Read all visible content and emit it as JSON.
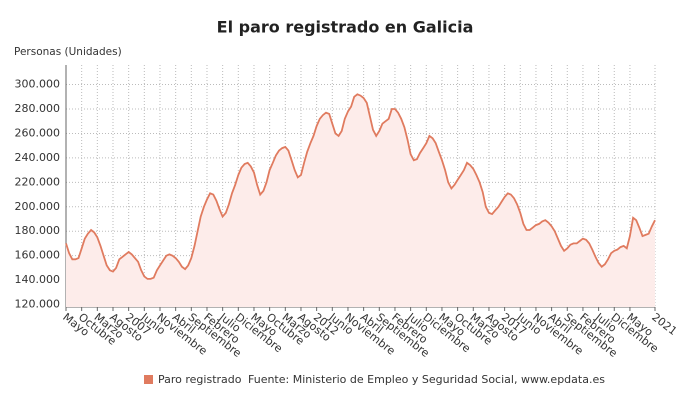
{
  "chart_data": {
    "type": "line",
    "title": "El paro registrado en Galicia",
    "y_axis_label": "Personas (Unidades)",
    "source": "Fuente: Ministerio de Empleo y Seguridad Social, www.epdata.es",
    "categories": [
      "Mayo",
      null,
      null,
      null,
      null,
      "Octubre",
      null,
      null,
      null,
      null,
      "Marzo",
      null,
      null,
      null,
      null,
      "Agosto",
      null,
      null,
      null,
      null,
      "2007",
      null,
      null,
      null,
      null,
      "Junio",
      null,
      null,
      null,
      null,
      "Noviembre",
      null,
      null,
      null,
      null,
      "Abril",
      null,
      null,
      null,
      null,
      "Septiembre",
      null,
      null,
      null,
      null,
      "Febrero",
      null,
      null,
      null,
      null,
      "Julio",
      null,
      null,
      null,
      null,
      "Diciembre",
      null,
      null,
      null,
      null,
      "Mayo",
      null,
      null,
      null,
      null,
      "Octubre",
      null,
      null,
      null,
      null,
      "Marzo",
      null,
      null,
      null,
      null,
      "Agosto",
      null,
      null,
      null,
      null,
      "2012",
      null,
      null,
      null,
      null,
      "Junio",
      null,
      null,
      null,
      null,
      "Noviembre",
      null,
      null,
      null,
      null,
      "Abril",
      null,
      null,
      null,
      null,
      "Septiembre",
      null,
      null,
      null,
      null,
      "Febrero",
      null,
      null,
      null,
      null,
      "Julio",
      null,
      null,
      null,
      null,
      "Diciembre",
      null,
      null,
      null,
      null,
      "Mayo",
      null,
      null,
      null,
      null,
      "Octubre",
      null,
      null,
      null,
      null,
      "Marzo",
      null,
      null,
      null,
      null,
      "Agosto",
      null,
      null,
      null,
      null,
      "2017",
      null,
      null,
      null,
      null,
      "Junio",
      null,
      null,
      null,
      null,
      "Noviembre",
      null,
      null,
      null,
      null,
      "Abril",
      null,
      null,
      null,
      null,
      "Septiembre",
      null,
      null,
      null,
      null,
      "Febrero",
      null,
      null,
      null,
      null,
      "Julio",
      null,
      null,
      null,
      null,
      "Diciembre",
      null,
      null,
      null,
      null,
      "Mayo",
      null,
      null,
      null,
      null,
      null,
      null,
      null,
      "2021"
    ],
    "series": [
      {
        "name": "Paro registrado",
        "color": "#e07b5f",
        "fill": "#fdecea",
        "values": [
          170000,
          162000,
          157000,
          157000,
          158000,
          166000,
          174000,
          178000,
          181000,
          179000,
          175000,
          168000,
          160000,
          152000,
          148000,
          147000,
          150000,
          157000,
          159000,
          161000,
          163000,
          161000,
          158000,
          155000,
          148000,
          143000,
          141000,
          141000,
          142000,
          148000,
          152000,
          156000,
          160000,
          161000,
          160000,
          158000,
          155000,
          151000,
          149000,
          152000,
          158000,
          168000,
          180000,
          192000,
          200000,
          206000,
          211000,
          210000,
          205000,
          198000,
          192000,
          195000,
          202000,
          211000,
          218000,
          226000,
          232000,
          235000,
          236000,
          233000,
          228000,
          218000,
          210000,
          213000,
          220000,
          230000,
          236000,
          242000,
          246000,
          248000,
          249000,
          246000,
          238000,
          230000,
          224000,
          226000,
          236000,
          245000,
          252000,
          258000,
          266000,
          272000,
          275000,
          277000,
          276000,
          268000,
          260000,
          258000,
          262000,
          272000,
          278000,
          282000,
          290000,
          292000,
          291000,
          289000,
          285000,
          274000,
          263000,
          258000,
          262000,
          268000,
          270000,
          272000,
          280000,
          280000,
          277000,
          272000,
          265000,
          255000,
          243000,
          238000,
          239000,
          244000,
          248000,
          252000,
          258000,
          256000,
          252000,
          245000,
          238000,
          230000,
          220000,
          215000,
          218000,
          222000,
          226000,
          230000,
          236000,
          234000,
          231000,
          226000,
          220000,
          212000,
          200000,
          195000,
          194000,
          197000,
          200000,
          204000,
          208000,
          211000,
          210000,
          207000,
          202000,
          195000,
          186000,
          181000,
          181000,
          183000,
          185000,
          186000,
          188000,
          189000,
          187000,
          184000,
          180000,
          174000,
          168000,
          164000,
          166000,
          169000,
          170000,
          170000,
          172000,
          174000,
          173000,
          170000,
          165000,
          159000,
          154000,
          151000,
          153000,
          157000,
          162000,
          164000,
          165000,
          167000,
          168000,
          166000,
          176000,
          191000,
          189000,
          183000,
          176000,
          177000,
          178000,
          184000,
          189000
        ]
      }
    ],
    "ylim": [
      118000,
      316000
    ],
    "yticks": [
      {
        "value": 120000,
        "label": "120.000"
      },
      {
        "value": 140000,
        "label": "140.000"
      },
      {
        "value": 160000,
        "label": "160.000"
      },
      {
        "value": 180000,
        "label": "180.000"
      },
      {
        "value": 200000,
        "label": "200.000"
      },
      {
        "value": 220000,
        "label": "220.000"
      },
      {
        "value": 240000,
        "label": "240.000"
      },
      {
        "value": 260000,
        "label": "260.000"
      },
      {
        "value": 280000,
        "label": "280.000"
      },
      {
        "value": 300000,
        "label": "300.000"
      }
    ],
    "grid": true
  }
}
